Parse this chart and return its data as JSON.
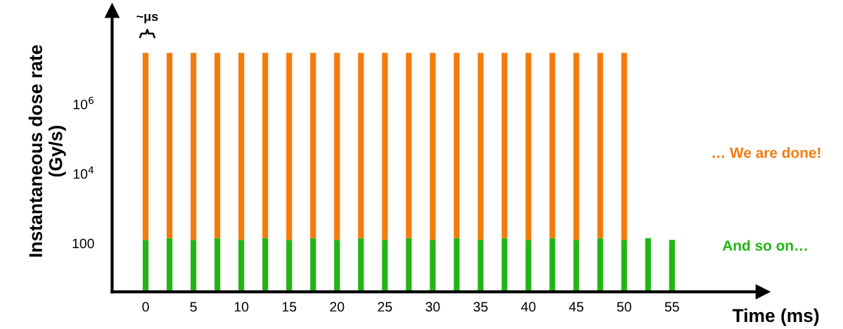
{
  "chart_data": {
    "type": "bar",
    "xlabel": "Time (ms)",
    "ylabel": "Instantaneous dose rate\n(Gy/s)",
    "x": [
      0,
      2.5,
      5,
      7.5,
      10,
      12.5,
      15,
      17.5,
      20,
      22.5,
      25,
      27.5,
      30,
      32.5,
      35,
      37.5,
      40,
      42.5,
      45,
      47.5,
      50,
      52.5,
      55
    ],
    "stacked": true,
    "series": [
      {
        "name": "And so on…",
        "color": "#22b413",
        "values": [
          125,
          140,
          125,
          140,
          125,
          140,
          125,
          140,
          125,
          140,
          125,
          140,
          125,
          140,
          125,
          140,
          125,
          140,
          125,
          140,
          125,
          140,
          125
        ]
      },
      {
        "name": "… We are done!",
        "color": "#f47a0a",
        "values": [
          30000000.0,
          30000000.0,
          30000000.0,
          30000000.0,
          30000000.0,
          30000000.0,
          30000000.0,
          30000000.0,
          30000000.0,
          30000000.0,
          30000000.0,
          30000000.0,
          30000000.0,
          30000000.0,
          30000000.0,
          30000000.0,
          30000000.0,
          30000000.0,
          30000000.0,
          30000000.0,
          30000000.0,
          null,
          null
        ]
      }
    ],
    "log": true,
    "ylim": [
      4,
      500000000.0
    ],
    "yticks": [
      {
        "value": 100,
        "label": "100"
      },
      {
        "value": 10000,
        "label": "10$^{4}$"
      },
      {
        "value": 1000000,
        "label": "10$^{6}$"
      }
    ],
    "xlim": [
      -3.5,
      64.5
    ],
    "xticks": [
      0,
      5,
      10,
      15,
      20,
      25,
      30,
      35,
      40,
      45,
      50,
      55
    ],
    "grid": false,
    "legend": false,
    "annotations": [
      "~μs"
    ]
  }
}
